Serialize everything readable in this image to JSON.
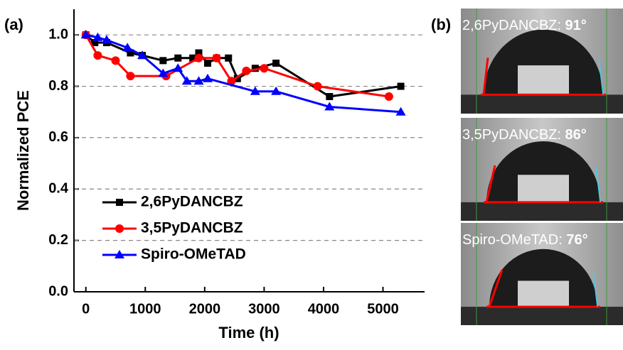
{
  "chart_data": {
    "type": "line",
    "panel_label": "(a)",
    "xlabel": "Time (h)",
    "ylabel": "Normalized PCE",
    "xlim": [
      -200,
      5700
    ],
    "ylim": [
      0,
      1.1
    ],
    "xticks": [
      0,
      1000,
      2000,
      3000,
      4000,
      5000
    ],
    "yticks": [
      {
        "value": 0,
        "label": "0.0"
      },
      {
        "value": 0.2,
        "label": "0.2"
      },
      {
        "value": 0.4,
        "label": "0.4"
      },
      {
        "value": 0.6,
        "label": "0.6"
      },
      {
        "value": 0.8,
        "label": "0.8"
      },
      {
        "value": 1,
        "label": "1.0"
      }
    ],
    "grid": true,
    "legend": "lower left",
    "series": [
      {
        "name": "2,6PyDANCBZ",
        "color": "#000000",
        "marker": "square",
        "x": [
          0,
          150,
          350,
          750,
          950,
          1300,
          1550,
          1800,
          1900,
          2050,
          2200,
          2400,
          2550,
          2850,
          3200,
          4100,
          5300
        ],
        "values": [
          1.0,
          0.97,
          0.97,
          0.93,
          0.92,
          0.9,
          0.91,
          0.91,
          0.93,
          0.89,
          0.91,
          0.91,
          0.83,
          0.87,
          0.89,
          0.76,
          0.8
        ]
      },
      {
        "name": "3,5PyDANCBZ",
        "color": "#ff0000",
        "marker": "circle",
        "x": [
          0,
          200,
          500,
          750,
          1350,
          1900,
          2200,
          2450,
          2700,
          3000,
          3900,
          5100
        ],
        "values": [
          1.0,
          0.92,
          0.9,
          0.84,
          0.84,
          0.91,
          0.91,
          0.82,
          0.86,
          0.87,
          0.8,
          0.76
        ]
      },
      {
        "name": "Spiro-OMeTAD",
        "color": "#0000ff",
        "marker": "triangle",
        "x": [
          0,
          200,
          350,
          700,
          950,
          1300,
          1550,
          1700,
          1900,
          2050,
          2850,
          3200,
          4100,
          5300
        ],
        "values": [
          1.0,
          0.99,
          0.98,
          0.95,
          0.92,
          0.85,
          0.87,
          0.82,
          0.82,
          0.83,
          0.78,
          0.78,
          0.72,
          0.7
        ]
      }
    ]
  },
  "panel_b": {
    "label": "(b)",
    "images": [
      {
        "label": "2,6PyDANCBZ: ",
        "angle": "91°"
      },
      {
        "label": "3,5PyDANCBZ: ",
        "angle": "86°"
      },
      {
        "label": "Spiro-OMeTAD: ",
        "angle": "76°"
      }
    ]
  }
}
